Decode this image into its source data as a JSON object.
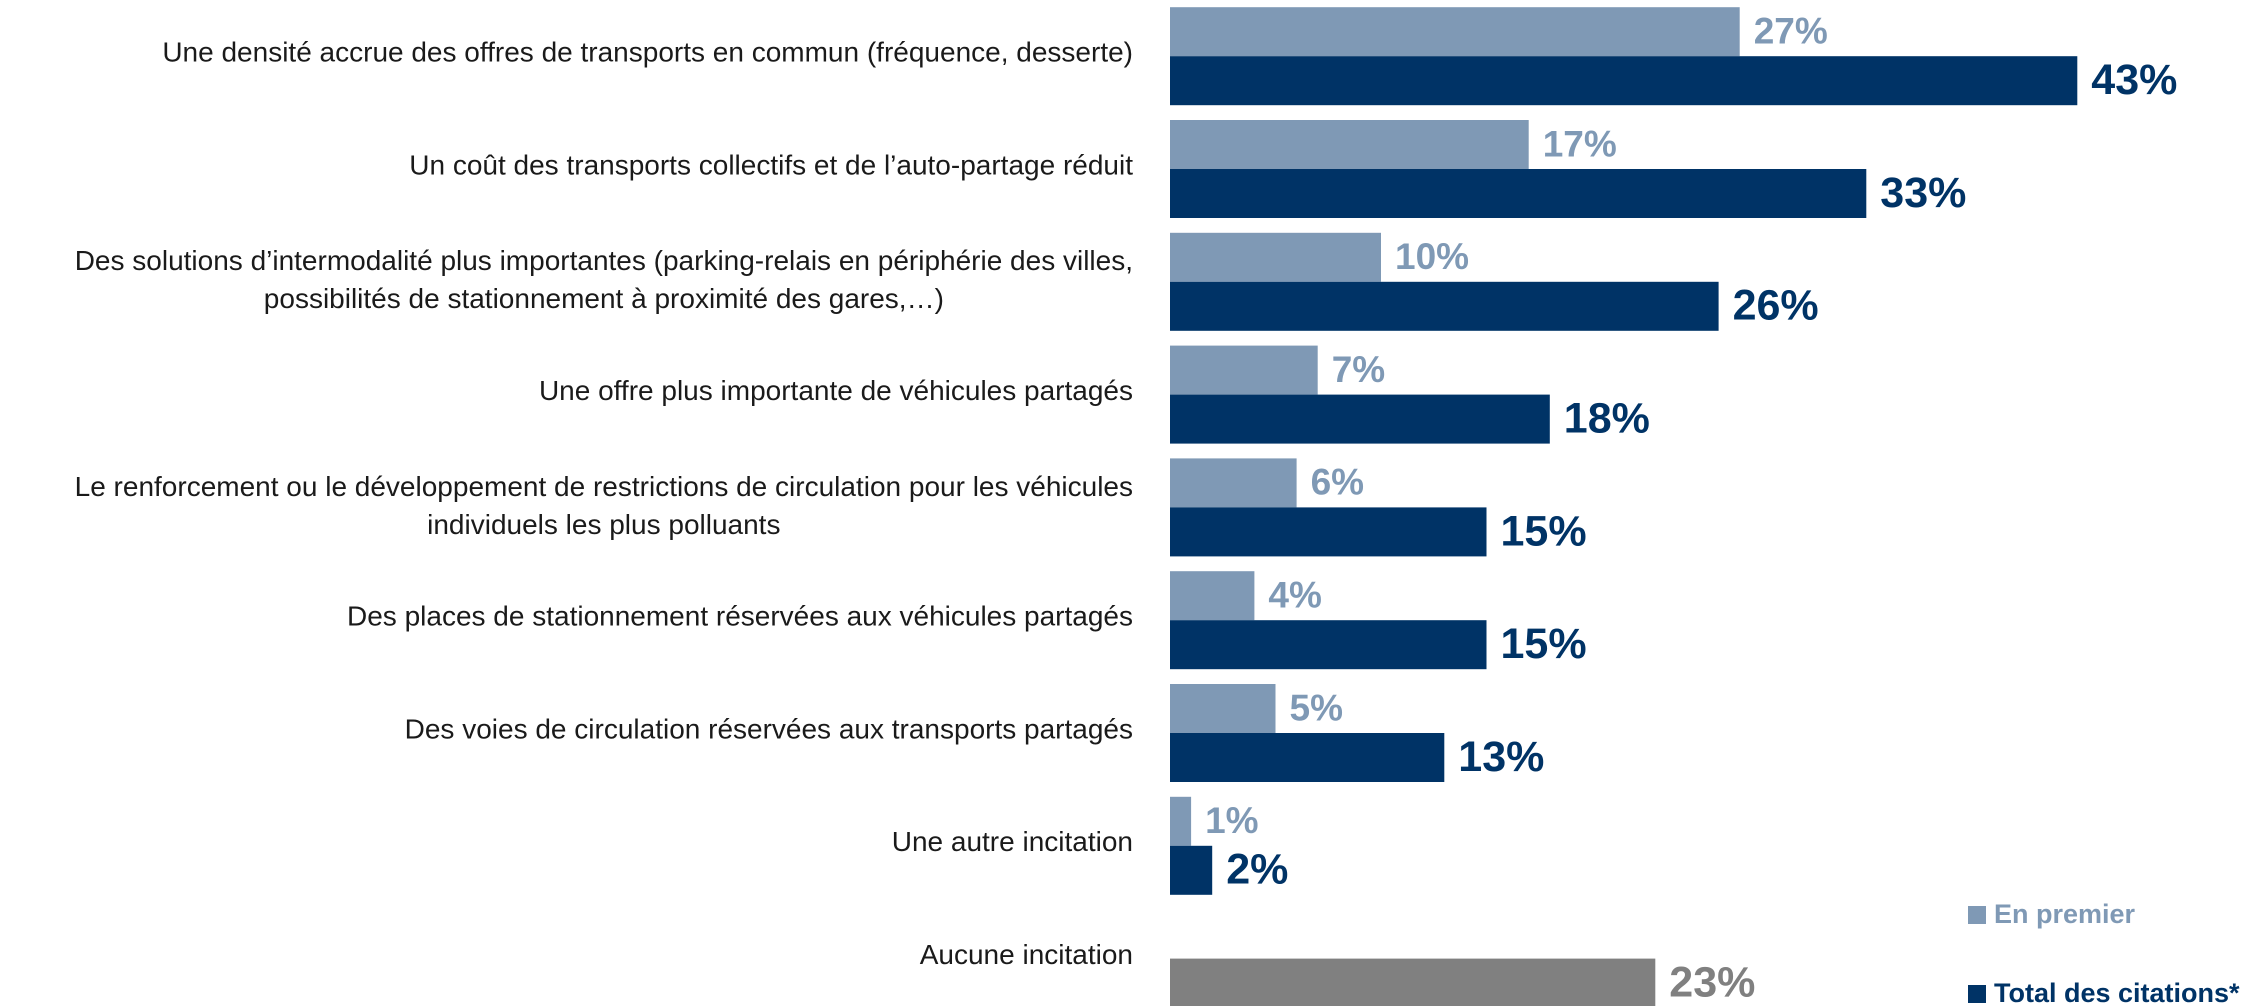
{
  "chart_data": {
    "type": "barh",
    "categories": [
      [
        "Une densité accrue des offres de transports en commun (fréquence, desserte)"
      ],
      [
        "Un coût des transports collectifs et de l’auto-partage réduit"
      ],
      [
        "Des solutions d’intermodalité plus importantes (parking-relais en périphérie des villes,",
        "possibilités de stationnement à proximité des gares,…)"
      ],
      [
        "Une offre plus importante de véhicules partagés"
      ],
      [
        "Le renforcement ou le développement de restrictions de circulation pour les véhicules",
        "individuels les plus polluants"
      ],
      [
        "Des places de stationnement réservées aux véhicules partagés"
      ],
      [
        "Des voies de circulation réservées aux transports partagés"
      ],
      [
        "Une autre incitation"
      ],
      [
        "Aucune incitation"
      ]
    ],
    "series": [
      {
        "name": "En premier",
        "color": "#7f99b5",
        "values": [
          27,
          17,
          10,
          7,
          6,
          4,
          5,
          1,
          null
        ],
        "value_labels": [
          "27%",
          "17%",
          "10%",
          "7%",
          "6%",
          "4%",
          "5%",
          "1%",
          null
        ]
      },
      {
        "name": "Total des citations*",
        "color": "#003366",
        "values": [
          43,
          33,
          26,
          18,
          15,
          15,
          13,
          2,
          23
        ],
        "value_labels": [
          "43%",
          "33%",
          "26%",
          "18%",
          "15%",
          "15%",
          "13%",
          "2%",
          "23%"
        ]
      }
    ],
    "highlight": {
      "index": 8,
      "color": "#808080"
    },
    "legend": "bottom-right"
  }
}
